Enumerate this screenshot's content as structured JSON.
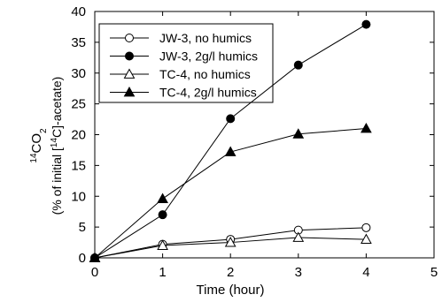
{
  "chart_data": {
    "type": "line",
    "xlabel": "Time (hour)",
    "ylabel": "(% of initial [14C]-acetate)",
    "ylabel_species": "14CO2",
    "xlim": [
      0,
      5
    ],
    "ylim": [
      0,
      40
    ],
    "x_ticks": [
      0,
      1,
      2,
      3,
      4,
      5
    ],
    "y_ticks": [
      0,
      5,
      10,
      15,
      20,
      25,
      30,
      35,
      40
    ],
    "grid": false,
    "legend_position": "top-left",
    "series": [
      {
        "name": "JW-3, no humics",
        "marker": "circle-open",
        "x": [
          0,
          1,
          2,
          3,
          4
        ],
        "values": [
          0,
          2.2,
          3.0,
          4.5,
          4.9
        ]
      },
      {
        "name": "JW-3, 2g/l humics",
        "marker": "circle-filled",
        "x": [
          0,
          1,
          2,
          3,
          4
        ],
        "values": [
          0,
          7.0,
          22.6,
          31.3,
          37.9
        ]
      },
      {
        "name": "TC-4, no humics",
        "marker": "triangle-open",
        "x": [
          0,
          1,
          2,
          3,
          4
        ],
        "values": [
          0,
          2.0,
          2.5,
          3.3,
          3.0
        ]
      },
      {
        "name": "TC-4, 2g/l humics",
        "marker": "triangle-filled",
        "x": [
          0,
          1,
          2,
          3,
          4
        ],
        "values": [
          0,
          9.6,
          17.2,
          20.1,
          21.0
        ]
      }
    ]
  }
}
